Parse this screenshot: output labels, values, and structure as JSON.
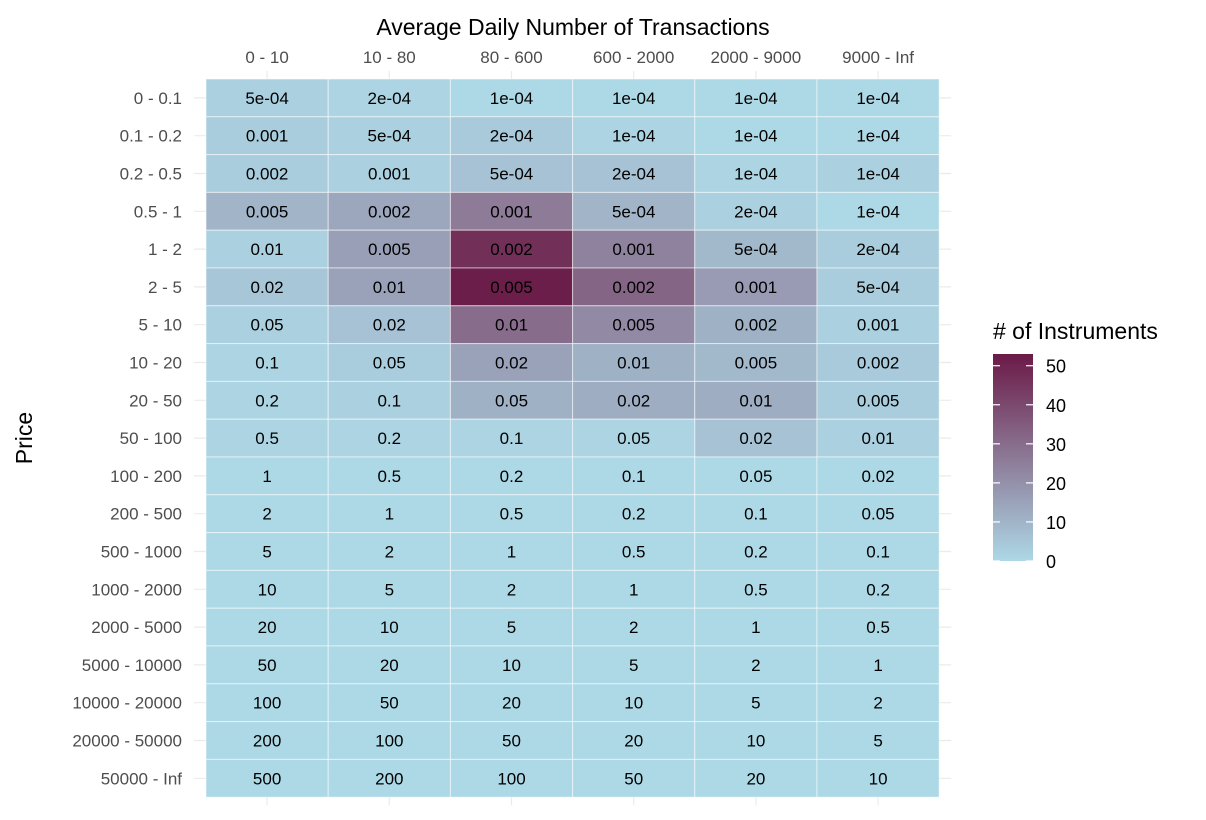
{
  "chart_data": {
    "type": "heatmap",
    "title": "",
    "xlabel": "Average Daily Number of Transactions",
    "ylabel": "Price",
    "x_position": "top",
    "x_categories": [
      "0 - 10",
      "10 - 80",
      "80 - 600",
      "600 - 2000",
      "2000 - 9000",
      "9000 - Inf"
    ],
    "y_categories": [
      "0 - 0.1",
      "0.1 - 0.2",
      "0.2 - 0.5",
      "0.5 - 1",
      "1 - 2",
      "2 - 5",
      "5 - 10",
      "10 - 20",
      "20 - 50",
      "50 - 100",
      "100 - 200",
      "200 - 500",
      "500 - 1000",
      "1000 - 2000",
      "2000 - 5000",
      "5000 - 10000",
      "10000 - 20000",
      "20000 - 50000",
      "50000 - Inf"
    ],
    "cell_labels": [
      [
        "5e-04",
        "2e-04",
        "1e-04",
        "1e-04",
        "1e-04",
        "1e-04"
      ],
      [
        "0.001",
        "5e-04",
        "2e-04",
        "1e-04",
        "1e-04",
        "1e-04"
      ],
      [
        "0.002",
        "0.001",
        "5e-04",
        "2e-04",
        "1e-04",
        "1e-04"
      ],
      [
        "0.005",
        "0.002",
        "0.001",
        "5e-04",
        "2e-04",
        "1e-04"
      ],
      [
        "0.01",
        "0.005",
        "0.002",
        "0.001",
        "5e-04",
        "2e-04"
      ],
      [
        "0.02",
        "0.01",
        "0.005",
        "0.002",
        "0.001",
        "5e-04"
      ],
      [
        "0.05",
        "0.02",
        "0.01",
        "0.005",
        "0.002",
        "0.001"
      ],
      [
        "0.1",
        "0.05",
        "0.02",
        "0.01",
        "0.005",
        "0.002"
      ],
      [
        "0.2",
        "0.1",
        "0.05",
        "0.02",
        "0.01",
        "0.005"
      ],
      [
        "0.5",
        "0.2",
        "0.1",
        "0.05",
        "0.02",
        "0.01"
      ],
      [
        "1",
        "0.5",
        "0.2",
        "0.1",
        "0.05",
        "0.02"
      ],
      [
        "2",
        "1",
        "0.5",
        "0.2",
        "0.1",
        "0.05"
      ],
      [
        "5",
        "2",
        "1",
        "0.5",
        "0.2",
        "0.1"
      ],
      [
        "10",
        "5",
        "2",
        "1",
        "0.5",
        "0.2"
      ],
      [
        "20",
        "10",
        "5",
        "2",
        "1",
        "0.5"
      ],
      [
        "50",
        "20",
        "10",
        "5",
        "2",
        "1"
      ],
      [
        "100",
        "50",
        "20",
        "10",
        "5",
        "2"
      ],
      [
        "200",
        "100",
        "50",
        "20",
        "10",
        "5"
      ],
      [
        "500",
        "200",
        "100",
        "50",
        "20",
        "10"
      ]
    ],
    "fill_values": [
      [
        2,
        1,
        0,
        0,
        0,
        0
      ],
      [
        3,
        2,
        4,
        1,
        0,
        0
      ],
      [
        3,
        2,
        6,
        6,
        1,
        2
      ],
      [
        10,
        14,
        26,
        10,
        2,
        0
      ],
      [
        2,
        16,
        47,
        24,
        9,
        3
      ],
      [
        5,
        15,
        52,
        32,
        17,
        3
      ],
      [
        2,
        6,
        30,
        22,
        11,
        2
      ],
      [
        1,
        3,
        15,
        11,
        9,
        4
      ],
      [
        1,
        2,
        11,
        12,
        12,
        3
      ],
      [
        1,
        1,
        1,
        1,
        6,
        2
      ],
      [
        0,
        0,
        0,
        0,
        0,
        0
      ],
      [
        0,
        0,
        0,
        0,
        0,
        0
      ],
      [
        0,
        0,
        0,
        0,
        0,
        0
      ],
      [
        0,
        0,
        0,
        0,
        0,
        0
      ],
      [
        0,
        0,
        0,
        0,
        0,
        0
      ],
      [
        0,
        0,
        0,
        0,
        0,
        0
      ],
      [
        0,
        0,
        0,
        0,
        0,
        0
      ],
      [
        0,
        0,
        0,
        0,
        0,
        0
      ],
      [
        0,
        0,
        0,
        0,
        0,
        0
      ]
    ],
    "legend": {
      "title": "# of Instruments",
      "breaks": [
        "0",
        "10",
        "20",
        "30",
        "40",
        "50"
      ],
      "min": 0,
      "max": 53,
      "color_low": "#add8e6",
      "color_high": "#6b1a47",
      "placement": "right"
    },
    "grid": true,
    "colors": {
      "gridline": "#ebebeb",
      "axis_text": "#4d4d4d",
      "label_text": "#000000"
    }
  }
}
